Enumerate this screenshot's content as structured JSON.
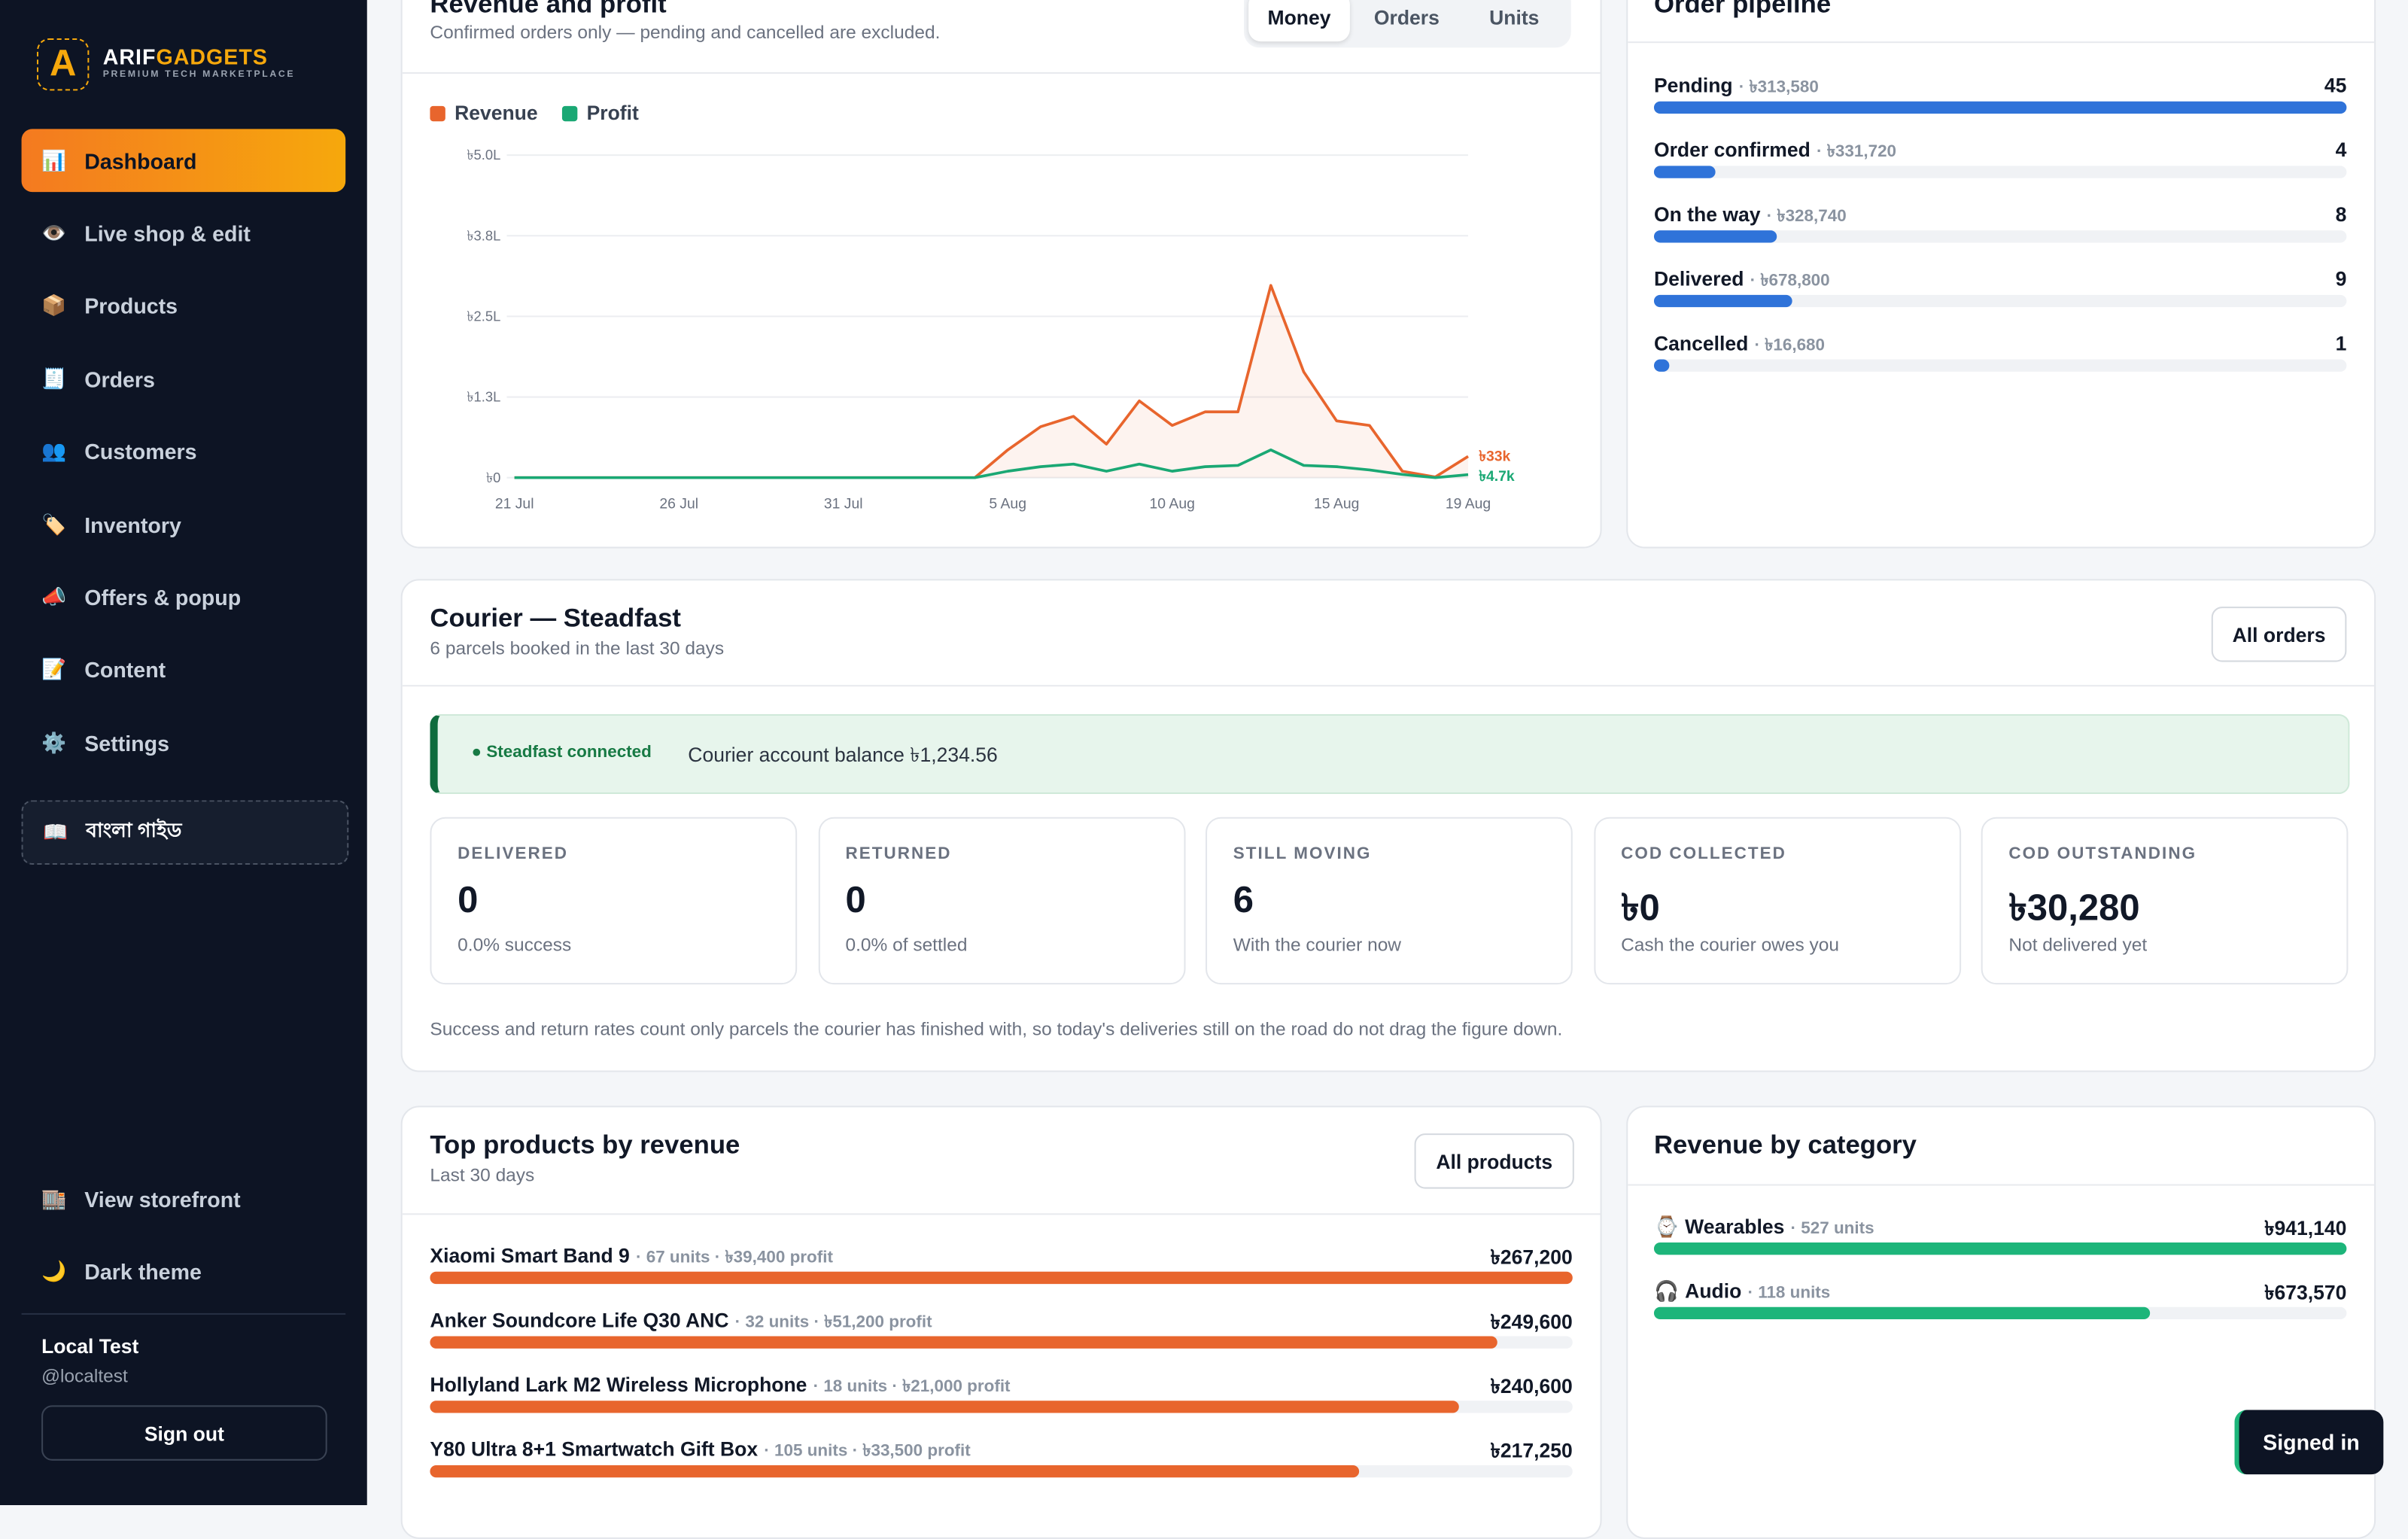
{
  "sidebar": {
    "brand": {
      "logo_letter": "A",
      "first": "ARIF",
      "second": "GADGETS",
      "tagline": "PREMIUM TECH MARKETPLACE"
    },
    "nav": [
      {
        "icon": "📊",
        "label": "Dashboard"
      },
      {
        "icon": "👁️",
        "label": "Live shop & edit"
      },
      {
        "icon": "📦",
        "label": "Products"
      },
      {
        "icon": "🧾",
        "label": "Orders"
      },
      {
        "icon": "👥",
        "label": "Customers"
      },
      {
        "icon": "🏷️",
        "label": "Inventory"
      },
      {
        "icon": "📣",
        "label": "Offers & popup"
      },
      {
        "icon": "📝",
        "label": "Content"
      },
      {
        "icon": "⚙️",
        "label": "Settings"
      }
    ],
    "guide": {
      "icon": "📖",
      "label": "বাংলা গাইড"
    },
    "footer_links": [
      {
        "icon": "🏬",
        "label": "View storefront"
      },
      {
        "icon": "🌙",
        "label": "Dark theme"
      }
    ],
    "user": {
      "name": "Local Test",
      "handle": "@localtest",
      "sign_out": "Sign out"
    }
  },
  "revenue_card": {
    "title": "Revenue and profit",
    "subtitle": "Confirmed orders only — pending and cancelled are excluded.",
    "tabs": [
      "Money",
      "Orders",
      "Units"
    ],
    "chart": {
      "type": "line",
      "categories": [
        "21 Jul",
        null,
        null,
        null,
        null,
        "26 Jul",
        null,
        null,
        null,
        null,
        "31 Jul",
        null,
        null,
        null,
        null,
        "5 Aug",
        null,
        null,
        null,
        null,
        "10 Aug",
        null,
        null,
        null,
        null,
        "15 Aug",
        null,
        null,
        null,
        "19 Aug"
      ],
      "series": [
        {
          "name": "Revenue",
          "color": "#e8652d",
          "values": [
            0,
            0,
            0,
            0,
            0,
            0,
            0,
            0,
            0,
            0,
            0,
            0,
            0,
            0,
            0,
            43000,
            79000,
            95000,
            52000,
            119000,
            81000,
            102000,
            102000,
            298000,
            164000,
            88000,
            81000,
            10000,
            1000,
            33000
          ],
          "value_labels": [
            null,
            null,
            null,
            null,
            null,
            null,
            null,
            null,
            null,
            null,
            null,
            null,
            null,
            null,
            null,
            null,
            null,
            null,
            null,
            null,
            null,
            null,
            null,
            null,
            null,
            null,
            null,
            null,
            null,
            "৳33k"
          ]
        },
        {
          "name": "Profit",
          "color": "#1aa874",
          "values": [
            0,
            0,
            0,
            0,
            0,
            0,
            0,
            0,
            0,
            0,
            0,
            0,
            0,
            0,
            0,
            10000,
            17000,
            21000,
            10000,
            21000,
            10000,
            17000,
            19000,
            43000,
            19000,
            17000,
            12000,
            5000,
            0,
            4700
          ],
          "value_labels": [
            null,
            null,
            null,
            null,
            null,
            null,
            null,
            null,
            null,
            null,
            null,
            null,
            null,
            null,
            null,
            null,
            null,
            null,
            null,
            null,
            null,
            null,
            null,
            null,
            null,
            null,
            null,
            null,
            null,
            "৳4.7k"
          ]
        }
      ],
      "ylim": [
        0,
        500000
      ],
      "yticks": [
        {
          "value": 0,
          "label": "৳0"
        },
        {
          "value": 125000,
          "label": "৳1.3L"
        },
        {
          "value": 250000,
          "label": "৳2.5L"
        },
        {
          "value": 375000,
          "label": "৳3.8L"
        },
        {
          "value": 500000,
          "label": "৳5.0L"
        }
      ],
      "grid": true
    }
  },
  "pipeline_card": {
    "title": "Order pipeline",
    "rows": [
      {
        "label": "Pending",
        "amount": "· ৳313,580",
        "count": 45
      },
      {
        "label": "Order confirmed",
        "amount": "· ৳331,720",
        "count": 4
      },
      {
        "label": "On the way",
        "amount": "· ৳328,740",
        "count": 8
      },
      {
        "label": "Delivered",
        "amount": "· ৳678,800",
        "count": 9
      },
      {
        "label": "Cancelled",
        "amount": "· ৳16,680",
        "count": 1
      }
    ],
    "color": "#2f73d9"
  },
  "courier_card": {
    "title": "Courier — Steadfast",
    "subtitle": "6 parcels booked in the last 30 days",
    "button": "All orders",
    "status": "● Steadfast connected",
    "balance": "Courier account balance ৳1,234.56",
    "stats": [
      {
        "label": "DELIVERED",
        "value": 0,
        "note": "0.0% success"
      },
      {
        "label": "RETURNED",
        "value": 0,
        "note": "0.0% of settled"
      },
      {
        "label": "STILL MOVING",
        "value": 6,
        "note": "With the courier now"
      },
      {
        "label": "COD COLLECTED",
        "value": "৳0",
        "note": "Cash the courier owes you"
      },
      {
        "label": "COD OUTSTANDING",
        "value": "৳30,280",
        "note": "Not delivered yet"
      }
    ],
    "footnote": "Success and return rates count only parcels the courier has finished with, so today's deliveries still on the road do not drag the figure down."
  },
  "products_card": {
    "title": "Top products by revenue",
    "subtitle": "Last 30 days",
    "button": "All products",
    "color": "#e8652d",
    "rows": [
      {
        "name": "Xiaomi Smart Band 9",
        "meta": "· 67 units · ৳39,400 profit",
        "revenue": 267200,
        "revenue_label": "৳267,200"
      },
      {
        "name": "Anker Soundcore Life Q30 ANC",
        "meta": "· 32 units · ৳51,200 profit",
        "revenue": 249600,
        "revenue_label": "৳249,600"
      },
      {
        "name": "Hollyland Lark M2 Wireless Microphone",
        "meta": "· 18 units · ৳21,000 profit",
        "revenue": 240600,
        "revenue_label": "৳240,600"
      },
      {
        "name": "Y80 Ultra 8+1 Smartwatch Gift Box",
        "meta": "· 105 units · ৳33,500 profit",
        "revenue": 217250,
        "revenue_label": "৳217,250"
      }
    ]
  },
  "category_card": {
    "title": "Revenue by category",
    "color": "#1db57a",
    "rows": [
      {
        "icon": "⌚",
        "name": "Wearables",
        "meta": "· 527 units",
        "value": 941140,
        "value_label": "৳941,140"
      },
      {
        "icon": "🎧",
        "name": "Audio",
        "meta": "· 118 units",
        "value": 673570,
        "value_label": "৳673,570"
      }
    ]
  },
  "toast": "Signed in"
}
